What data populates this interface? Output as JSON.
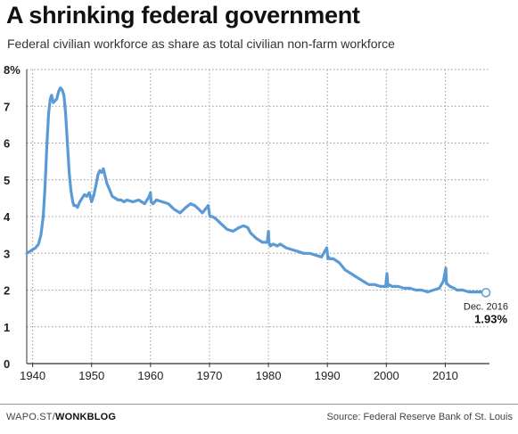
{
  "header": {
    "title": "A shrinking federal government",
    "subtitle": "Federal civilian workforce as share as total civilian non-farm workforce"
  },
  "footer": {
    "credit_prefix": "WAPO.ST/",
    "credit_brand": "WONKBLOG",
    "source": "Source: Federal Reserve Bank of St. Louis"
  },
  "colors": {
    "line": "#5b9bd5",
    "grid": "#999999",
    "axis": "#333333"
  },
  "chart_data": {
    "type": "line",
    "title": "A shrinking federal government",
    "subtitle": "Federal civilian workforce as share as total civilian non-farm workforce",
    "xlabel": "",
    "ylabel": "",
    "xlim": [
      1939,
      2017.5
    ],
    "ylim": [
      0,
      8
    ],
    "x_ticks": [
      1940,
      1950,
      1960,
      1970,
      1980,
      1990,
      2000,
      2010
    ],
    "x_tick_labels": [
      "1940",
      "1950",
      "1960",
      "1970",
      "1980",
      "1990",
      "2000",
      "2010"
    ],
    "y_ticks": [
      0,
      1,
      2,
      3,
      4,
      5,
      6,
      7,
      8
    ],
    "y_tick_labels": [
      "0",
      "1",
      "2",
      "3",
      "4",
      "5",
      "6",
      "7",
      "8%"
    ],
    "grid": true,
    "grid_style": "dotted",
    "legend": "none",
    "series": [
      {
        "name": "",
        "x": [
          1939.0,
          1939.5,
          1940.0,
          1940.5,
          1941.0,
          1941.4,
          1941.8,
          1942.1,
          1942.4,
          1942.7,
          1943.0,
          1943.2,
          1943.5,
          1943.8,
          1944.1,
          1944.4,
          1944.7,
          1945.0,
          1945.3,
          1945.6,
          1945.9,
          1946.2,
          1946.5,
          1946.8,
          1947.0,
          1947.3,
          1947.6,
          1948.0,
          1948.4,
          1948.8,
          1949.2,
          1949.6,
          1950.0,
          1950.4,
          1950.8,
          1951.1,
          1951.4,
          1951.7,
          1952.0,
          1952.3,
          1952.6,
          1953.0,
          1953.5,
          1954.0,
          1954.5,
          1955.0,
          1955.5,
          1956.0,
          1957.0,
          1958.0,
          1959.0,
          1959.6,
          1959.9,
          1960.0,
          1960.1,
          1960.4,
          1961.0,
          1962.0,
          1963.0,
          1964.0,
          1965.0,
          1966.0,
          1966.8,
          1967.5,
          1968.2,
          1968.8,
          1969.3,
          1969.8,
          1970.0,
          1970.1,
          1970.5,
          1971.0,
          1972.0,
          1973.0,
          1974.0,
          1975.0,
          1975.8,
          1976.5,
          1977.0,
          1978.0,
          1979.0,
          1979.8,
          1980.0,
          1980.1,
          1980.3,
          1980.8,
          1981.5,
          1982.0,
          1982.5,
          1983.0,
          1984.0,
          1985.0,
          1986.0,
          1987.0,
          1988.0,
          1989.0,
          1989.9,
          1990.1,
          1990.2,
          1990.4,
          1991.0,
          1992.0,
          1993.0,
          1994.0,
          1995.0,
          1996.0,
          1997.0,
          1998.0,
          1999.0,
          1999.9,
          2000.1,
          2000.25,
          2000.4,
          2001.0,
          2002.0,
          2003.0,
          2004.0,
          2005.0,
          2006.0,
          2007.0,
          2008.0,
          2009.0,
          2009.7,
          2010.1,
          2010.2,
          2010.4,
          2010.8,
          2011.5,
          2012.0,
          2013.0,
          2014.0,
          2015.0,
          2016.0,
          2016.9
        ],
        "values": [
          3.0,
          3.05,
          3.1,
          3.15,
          3.25,
          3.5,
          4.0,
          4.8,
          5.9,
          6.8,
          7.2,
          7.3,
          7.1,
          7.15,
          7.2,
          7.4,
          7.5,
          7.45,
          7.3,
          6.8,
          6.0,
          5.2,
          4.7,
          4.4,
          4.3,
          4.3,
          4.25,
          4.4,
          4.5,
          4.6,
          4.55,
          4.65,
          4.4,
          4.6,
          4.9,
          5.15,
          5.25,
          5.2,
          5.3,
          5.1,
          4.9,
          4.75,
          4.55,
          4.5,
          4.45,
          4.45,
          4.4,
          4.45,
          4.4,
          4.45,
          4.35,
          4.5,
          4.6,
          4.65,
          4.4,
          4.35,
          4.45,
          4.4,
          4.35,
          4.2,
          4.1,
          4.25,
          4.35,
          4.3,
          4.2,
          4.1,
          4.2,
          4.3,
          4.05,
          4.0,
          4.0,
          3.95,
          3.8,
          3.65,
          3.6,
          3.7,
          3.75,
          3.7,
          3.55,
          3.4,
          3.3,
          3.3,
          3.6,
          3.3,
          3.2,
          3.25,
          3.2,
          3.25,
          3.2,
          3.15,
          3.1,
          3.05,
          3.0,
          3.0,
          2.95,
          2.9,
          3.15,
          2.85,
          2.9,
          2.85,
          2.85,
          2.75,
          2.55,
          2.45,
          2.35,
          2.25,
          2.15,
          2.15,
          2.1,
          2.1,
          2.45,
          2.1,
          2.15,
          2.1,
          2.1,
          2.05,
          2.05,
          2.0,
          2.0,
          1.95,
          2.0,
          2.05,
          2.25,
          2.6,
          2.2,
          2.15,
          2.1,
          2.05,
          2.0,
          2.0,
          1.95,
          1.95,
          1.95,
          1.93
        ]
      }
    ],
    "annotations": [
      {
        "label": "Dec. 2016",
        "value": "1.93%",
        "x": 2016.9,
        "y": 1.93
      }
    ]
  }
}
